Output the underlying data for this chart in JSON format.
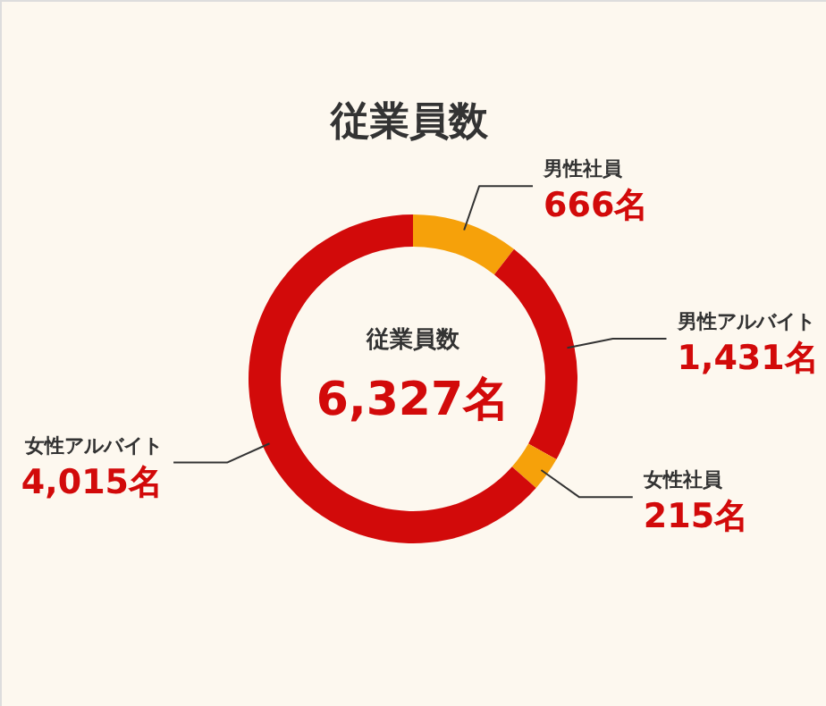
{
  "chart_data": {
    "type": "donut",
    "title": "従業員数",
    "categories": [
      "男性社員",
      "男性アルバイト",
      "女性社員",
      "女性アルバイト"
    ],
    "values": [
      666,
      1431,
      215,
      4015
    ],
    "colors": [
      "#f6a10a",
      "#d20a0a",
      "#f6a10a",
      "#d20a0a"
    ],
    "value_labels": [
      "666名",
      "1,431名",
      "215名",
      "4,015名"
    ],
    "annotations": [
      "従業員数",
      "6,327名"
    ]
  }
}
